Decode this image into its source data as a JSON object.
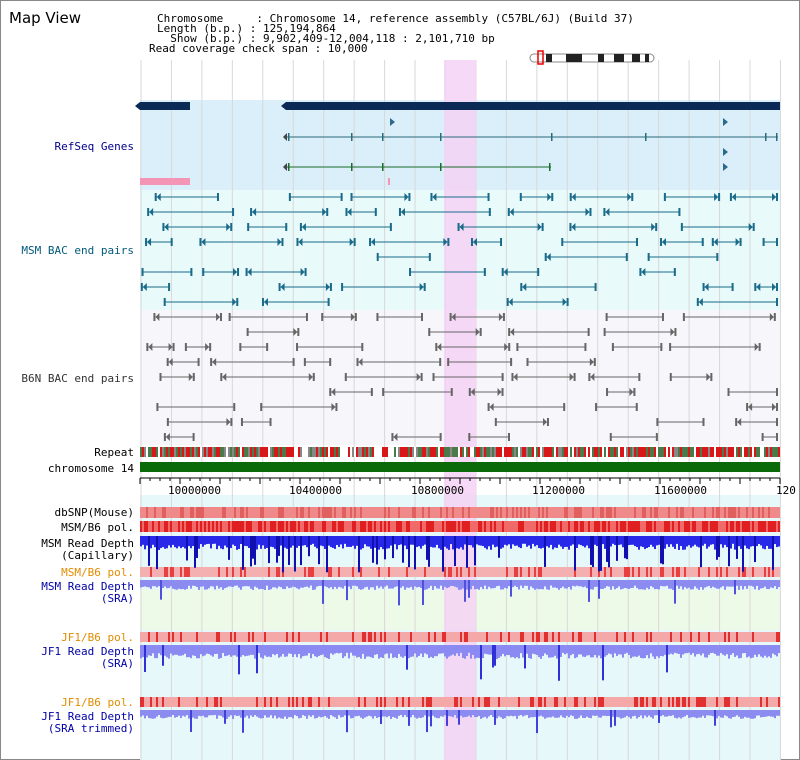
{
  "header": {
    "title": "Map View",
    "chromosome_label": "Chromosome     : Chromosome 14, reference assembly (C57BL/6J) (Build 37)",
    "length_label": "Length (b.p.) : 125,194,864",
    "show_label": "  Show (b.p.) : 9,902,409-12,004,118 : 2,101,710 bp",
    "coverage_label": "Read coverage check span : 10,000"
  },
  "tracks": {
    "refseq": "RefSeq Genes",
    "msm_bac": "MSM BAC end pairs",
    "b6n_bac": "B6N BAC end pairs",
    "repeat": "Repeat",
    "chromosome": "chromosome 14",
    "dbsnp": "dbSNP(Mouse)",
    "msm_b6_pol": "MSM/B6 pol.",
    "msm_depth_cap": "MSM Read Depth\n(Capillary)",
    "msm_b6_pol2": "MSM/B6 pol.",
    "msm_depth_sra": "MSM Read Depth\n(SRA)",
    "jf1_b6_pol": "JF1/B6 pol.",
    "jf1_depth_sra": "JF1 Read Depth\n(SRA)",
    "jf1_b6_pol2": "JF1/B6 pol.",
    "jf1_depth_trim": "JF1 Read Depth\n(SRA trimmed)"
  },
  "axis": {
    "ticks": [
      "10000000",
      "10400000",
      "10800000",
      "11200000",
      "11600000",
      "120"
    ]
  },
  "colors": {
    "refseq_bg": "#dbeffa",
    "msm_bg": "#e8fafa",
    "b6n_bg": "#f7f7fb",
    "highlight": "#f5d2f5",
    "chrom_green": "#0a6a0a",
    "navy_bar": "#0a2a55",
    "depth_blue": "#2030e0"
  }
}
